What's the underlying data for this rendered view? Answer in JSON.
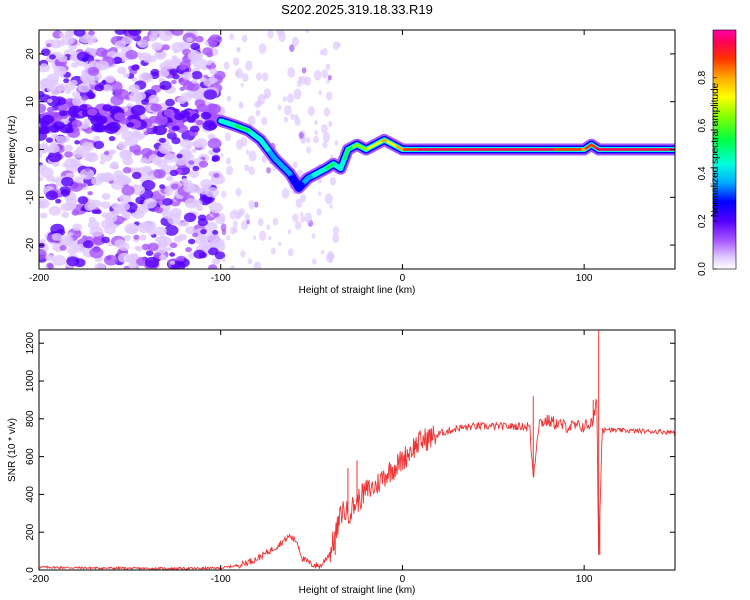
{
  "figure_title": "S202.2025.319.18.33.R19",
  "chart_data": [
    {
      "type": "heatmap",
      "title": "S202.2025.319.18.33.R19",
      "xlabel": "Height of straight line (km)",
      "ylabel": "Frequency (Hz)",
      "xlim": [
        -200,
        150
      ],
      "ylim": [
        -25,
        25
      ],
      "xticks": [
        -200,
        -100,
        0,
        100
      ],
      "yticks": [
        -20,
        -10,
        0,
        10,
        20
      ],
      "grid": false,
      "colorbar": {
        "label": "Normalized spectral amplitude",
        "range": [
          0.0,
          1.0
        ],
        "ticks": [
          "0.0",
          "0.2",
          "0.4",
          "0.6",
          "0.8"
        ],
        "colors": [
          "#ffffff",
          "#cc99ff",
          "#8800ff",
          "#0000ff",
          "#00ffff",
          "#00ff00",
          "#ffff00",
          "#ff8800",
          "#ff0000",
          "#ff00aa"
        ]
      },
      "ridge": {
        "x": [
          -100,
          -92,
          -85,
          -78,
          -70,
          -62,
          -57,
          -52,
          -47,
          -42,
          -38,
          -34,
          -30,
          -25,
          -20,
          -15,
          -10,
          -5,
          0,
          10,
          30,
          70,
          100,
          104,
          108,
          150
        ],
        "y": [
          6,
          5,
          4,
          2,
          -2,
          -5,
          -8,
          -6,
          -5,
          -4,
          -3,
          -4,
          0,
          1,
          0,
          1,
          2,
          1,
          0,
          0,
          0,
          0,
          0,
          1,
          0,
          0
        ],
        "amplitude": [
          0.45,
          0.5,
          0.5,
          0.45,
          0.4,
          0.35,
          0.3,
          0.4,
          0.45,
          0.5,
          0.5,
          0.45,
          0.55,
          0.6,
          0.65,
          0.7,
          0.75,
          0.7,
          0.8,
          0.9,
          0.95,
          0.95,
          0.8,
          0.85,
          0.9,
          0.95
        ]
      }
    },
    {
      "type": "line",
      "xlabel": "Height of straight line (km)",
      "ylabel": "SNR (10 * v/v)",
      "xlim": [
        -200,
        150
      ],
      "ylim": [
        0,
        1270
      ],
      "xticks": [
        -200,
        -100,
        0,
        100
      ],
      "yticks": [
        0,
        200,
        400,
        600,
        800,
        1000,
        1200
      ],
      "grid": false,
      "series": [
        {
          "name": "SNR",
          "color": "#ee3333",
          "x": [
            -200,
            -180,
            -160,
            -140,
            -120,
            -100,
            -90,
            -80,
            -70,
            -62,
            -58,
            -55,
            -50,
            -45,
            -40,
            -37,
            -35,
            -33,
            -30,
            -25,
            -20,
            -15,
            -10,
            -5,
            0,
            5,
            10,
            15,
            20,
            30,
            40,
            50,
            60,
            70,
            72,
            75,
            80,
            90,
            100,
            105,
            107,
            108,
            110,
            115,
            130,
            150
          ],
          "y": [
            15,
            12,
            10,
            8,
            8,
            10,
            25,
            60,
            120,
            180,
            150,
            60,
            30,
            20,
            90,
            180,
            250,
            320,
            300,
            360,
            420,
            440,
            500,
            540,
            580,
            640,
            680,
            700,
            720,
            750,
            760,
            760,
            760,
            760,
            490,
            780,
            790,
            760,
            760,
            780,
            900,
            80,
            760,
            740,
            735,
            730
          ],
          "spikes": [
            {
              "x": 72,
              "y": 920
            },
            {
              "x": 108,
              "y": 1270
            },
            {
              "x": 108.6,
              "y": 80
            },
            {
              "x": 105,
              "y": 900
            },
            {
              "x": -30,
              "y": 540
            },
            {
              "x": -25,
              "y": 580
            },
            {
              "x": -37,
              "y": 80
            }
          ]
        }
      ]
    }
  ]
}
